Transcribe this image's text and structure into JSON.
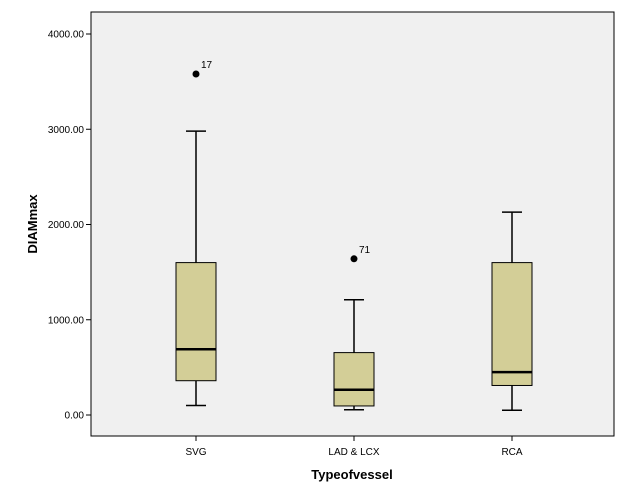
{
  "chart_data": {
    "type": "boxplot",
    "xlabel": "Typeofvessel",
    "ylabel": "DIAMmax",
    "ylim": [
      -200,
      4200
    ],
    "yticks": [
      0,
      1000,
      2000,
      3000,
      4000
    ],
    "ytick_labels": [
      "0.00",
      "1000.00",
      "2000.00",
      "3000.00",
      "4000.00"
    ],
    "grid": false,
    "categories": [
      "SVG",
      "LAD & LCX",
      "RCA"
    ],
    "boxes": [
      {
        "category": "SVG",
        "whisker_low": 100,
        "q1": 360,
        "median": 690,
        "q3": 1600,
        "whisker_high": 2980,
        "outliers": [
          {
            "value": 3580,
            "label": "17"
          }
        ]
      },
      {
        "category": "LAD & LCX",
        "whisker_low": 55,
        "q1": 95,
        "median": 265,
        "q3": 655,
        "whisker_high": 1210,
        "outliers": [
          {
            "value": 1640,
            "label": "71"
          }
        ]
      },
      {
        "category": "RCA",
        "whisker_low": 50,
        "q1": 310,
        "median": 450,
        "q3": 1600,
        "whisker_high": 2130,
        "outliers": []
      }
    ],
    "colors": {
      "plot_background": "#F0F0F0",
      "box_fill": "#D3CE97",
      "stroke": "#000000"
    }
  }
}
